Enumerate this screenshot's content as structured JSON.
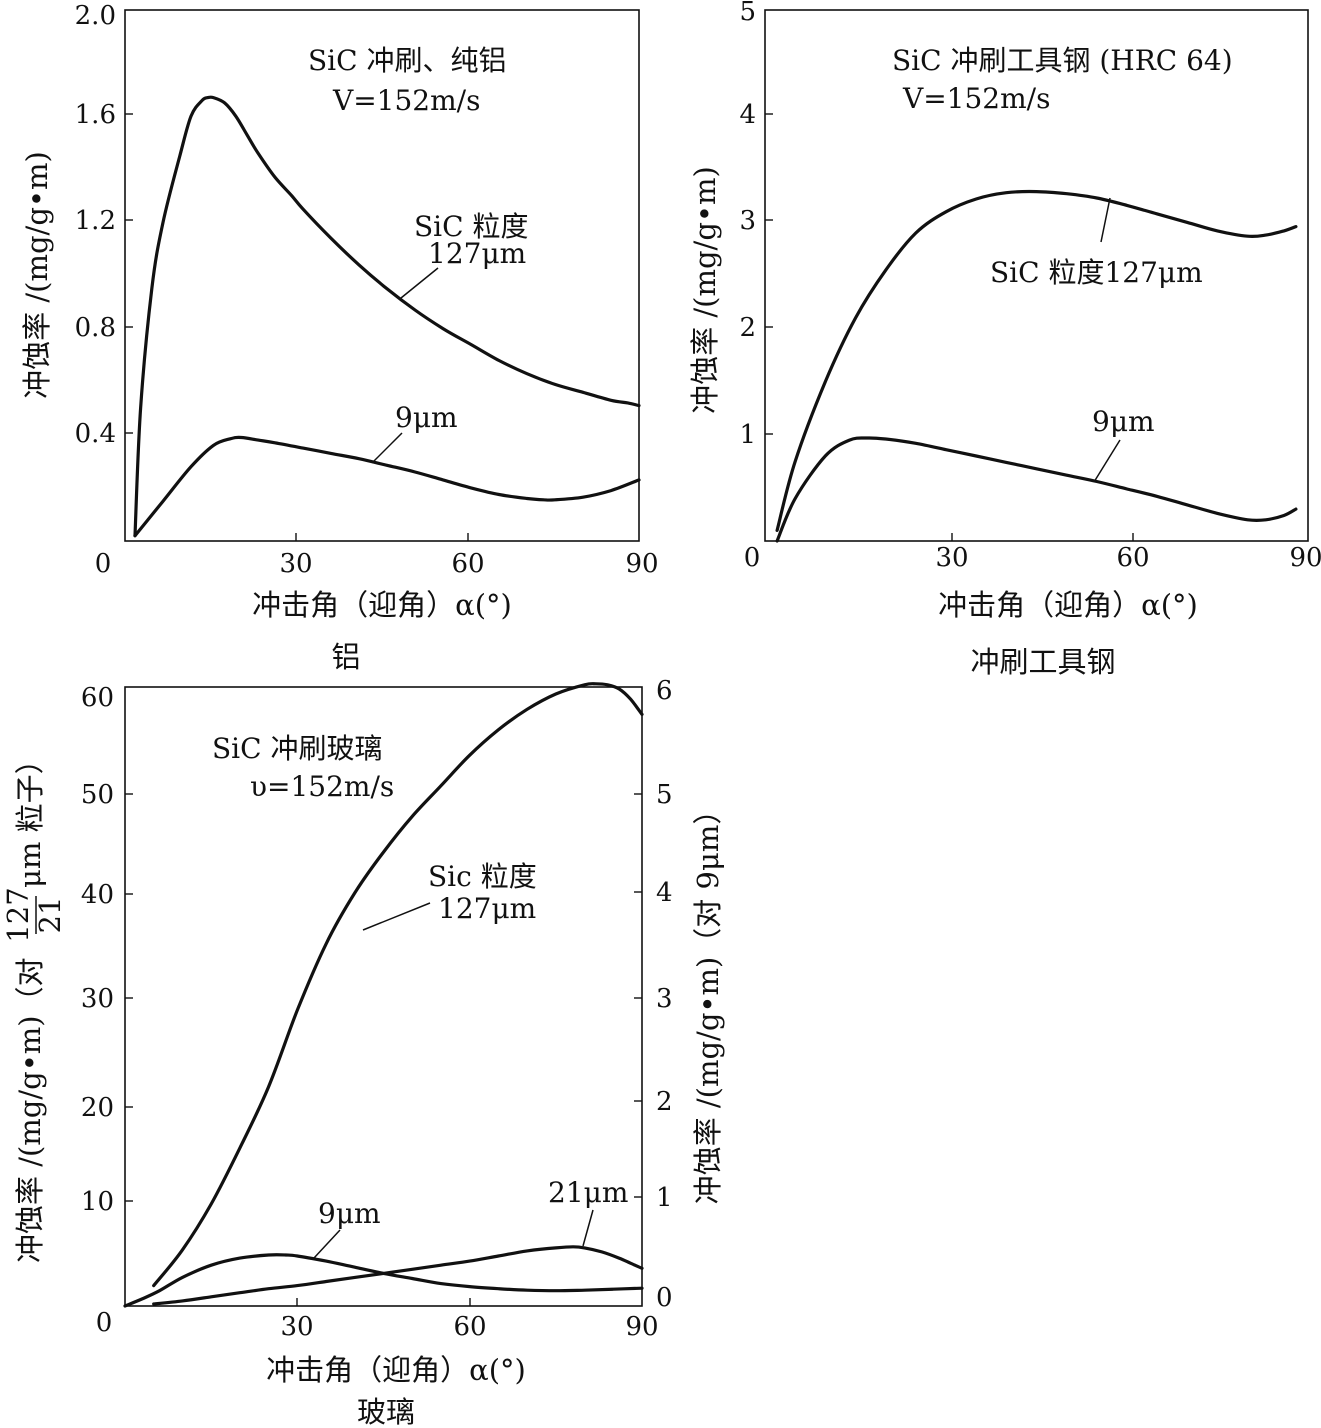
{
  "chart_data": [
    {
      "type": "line",
      "caption": "铝",
      "title": "SiC 冲刷、纯铝",
      "subtitle": "V=152m/s",
      "xlabel": "冲击角（迎角）α(°)",
      "ylabel": "冲蚀率 /(mg/g•m)",
      "xlim": [
        0,
        90
      ],
      "ylim": [
        0,
        2.0
      ],
      "xticks": [
        30,
        60,
        90
      ],
      "xtick_labels": [
        "30",
        "60",
        "90"
      ],
      "yticks": [
        0.4,
        0.8,
        1.2,
        1.6,
        2.0
      ],
      "ytick_labels": [
        "0.4",
        "0.8",
        "1.2",
        "1.6",
        "2.0"
      ],
      "origin_label": "0",
      "series": [
        {
          "name": "SiC 粒度 127μm",
          "label_lines": [
            "SiC 粒度",
            "127μm"
          ],
          "x": [
            0,
            1,
            3,
            5,
            8,
            10,
            12,
            13,
            14,
            16,
            18,
            20,
            22,
            25,
            28,
            30,
            35,
            40,
            45,
            50,
            55,
            60,
            65,
            70,
            75,
            80,
            85,
            88,
            90
          ],
          "y": [
            0.02,
            0.5,
            0.95,
            1.2,
            1.45,
            1.6,
            1.66,
            1.67,
            1.67,
            1.65,
            1.6,
            1.53,
            1.46,
            1.37,
            1.3,
            1.25,
            1.14,
            1.04,
            0.95,
            0.87,
            0.8,
            0.74,
            0.68,
            0.63,
            0.59,
            0.56,
            0.53,
            0.52,
            0.51
          ]
        },
        {
          "name": "9μm",
          "label_lines": [
            "9μm"
          ],
          "x": [
            0,
            5,
            10,
            14,
            17,
            19,
            22,
            25,
            30,
            35,
            40,
            45,
            50,
            55,
            60,
            65,
            70,
            73,
            75,
            80,
            85,
            90
          ],
          "y": [
            0.02,
            0.15,
            0.28,
            0.36,
            0.385,
            0.39,
            0.38,
            0.37,
            0.35,
            0.33,
            0.31,
            0.285,
            0.26,
            0.23,
            0.2,
            0.175,
            0.16,
            0.155,
            0.155,
            0.165,
            0.19,
            0.23
          ]
        }
      ]
    },
    {
      "type": "line",
      "caption": "冲刷工具钢",
      "title": "SiC 冲刷工具钢 (HRC 64)",
      "subtitle": "V=152m/s",
      "xlabel": "冲击角（迎角）α(°)",
      "ylabel": "冲蚀率 /(mg/g•m)",
      "xlim": [
        0,
        90
      ],
      "ylim": [
        0,
        5
      ],
      "xticks": [
        30,
        60,
        90
      ],
      "xtick_labels": [
        "30",
        "60",
        "90"
      ],
      "yticks": [
        1,
        2,
        3,
        4,
        5
      ],
      "ytick_labels": [
        "1",
        "2",
        "3",
        "4",
        "5"
      ],
      "origin_label": "0",
      "series": [
        {
          "name": "SiC 粒度127μm",
          "label_lines": [
            "SiC 粒度127μm"
          ],
          "x": [
            2,
            5,
            10,
            15,
            20,
            25,
            30,
            35,
            40,
            45,
            50,
            55,
            60,
            65,
            70,
            75,
            80,
            83,
            86,
            88
          ],
          "y": [
            0.1,
            0.75,
            1.5,
            2.1,
            2.55,
            2.9,
            3.1,
            3.22,
            3.28,
            3.29,
            3.27,
            3.23,
            3.16,
            3.08,
            3.0,
            2.92,
            2.87,
            2.88,
            2.92,
            2.96
          ]
        },
        {
          "name": "9μm",
          "label_lines": [
            "9μm"
          ],
          "x": [
            2,
            5,
            10,
            14,
            17,
            20,
            25,
            30,
            35,
            40,
            45,
            50,
            55,
            60,
            65,
            70,
            75,
            80,
            83,
            86,
            88
          ],
          "y": [
            0.0,
            0.4,
            0.8,
            0.95,
            0.97,
            0.96,
            0.92,
            0.86,
            0.8,
            0.74,
            0.68,
            0.62,
            0.56,
            0.49,
            0.42,
            0.34,
            0.26,
            0.2,
            0.2,
            0.24,
            0.3
          ]
        }
      ]
    },
    {
      "type": "line",
      "caption": "玻璃",
      "title": "SiC 冲刷玻璃",
      "subtitle": "υ=152m/s",
      "xlabel": "冲击角（迎角）α(°)",
      "ylabel_left": "冲蚀率 /(mg/g•m)（对127/21 μm 粒子）",
      "ylabel_left_parts": [
        "冲蚀率 /(mg/g•m)（对",
        "127",
        "21",
        "μm 粒子）"
      ],
      "ylabel_right": "冲蚀率 /(mg/g•m)（对 9μm）",
      "xlim": [
        0,
        90
      ],
      "ylim_left": [
        0,
        60
      ],
      "ylim_right": [
        0,
        6
      ],
      "xticks": [
        30,
        60,
        90
      ],
      "xtick_labels": [
        "30",
        "60",
        "90"
      ],
      "yticks_left": [
        10,
        20,
        30,
        40,
        50,
        60
      ],
      "ytick_labels_left": [
        "10",
        "20",
        "30",
        "40",
        "50",
        "60"
      ],
      "yticks_right": [
        1,
        2,
        3,
        4,
        5,
        6
      ],
      "ytick_labels_right": [
        "1",
        "2",
        "3",
        "4",
        "5",
        "6"
      ],
      "right_origin_label": "0",
      "origin_label": "0",
      "series": [
        {
          "name": "Sic 粒度 127μm",
          "axis": "left",
          "label_lines": [
            "Sic 粒度",
            "127μm"
          ],
          "x": [
            5,
            10,
            15,
            20,
            25,
            30,
            35,
            40,
            45,
            50,
            55,
            60,
            65,
            70,
            75,
            80,
            82,
            84,
            86,
            88,
            90
          ],
          "y": [
            2,
            5.5,
            10,
            15.5,
            21.5,
            29,
            35.5,
            40.5,
            44.5,
            48,
            51,
            54,
            56.5,
            58.5,
            60,
            60.9,
            61,
            60.9,
            60.5,
            59.5,
            58
          ]
        },
        {
          "name": "9μm",
          "axis": "right",
          "label_lines": [
            "9μm"
          ],
          "x": [
            0,
            3,
            6,
            10,
            15,
            20,
            25,
            28,
            30,
            35,
            40,
            45,
            50,
            55,
            60,
            65,
            70,
            75,
            80,
            85,
            90
          ],
          "y": [
            0.0,
            0.07,
            0.15,
            0.28,
            0.4,
            0.47,
            0.5,
            0.5,
            0.49,
            0.44,
            0.38,
            0.32,
            0.27,
            0.22,
            0.19,
            0.17,
            0.155,
            0.15,
            0.155,
            0.165,
            0.175
          ]
        },
        {
          "name": "21μm",
          "axis": "left",
          "label_lines": [
            "21μm"
          ],
          "x": [
            5,
            10,
            15,
            20,
            25,
            30,
            35,
            40,
            45,
            50,
            55,
            60,
            65,
            70,
            75,
            78,
            80,
            83,
            86,
            88,
            90
          ],
          "y": [
            0.2,
            0.5,
            0.9,
            1.3,
            1.7,
            2.0,
            2.4,
            2.8,
            3.2,
            3.6,
            4.0,
            4.4,
            4.9,
            5.4,
            5.7,
            5.8,
            5.7,
            5.3,
            4.7,
            4.2,
            3.7
          ]
        }
      ]
    }
  ]
}
